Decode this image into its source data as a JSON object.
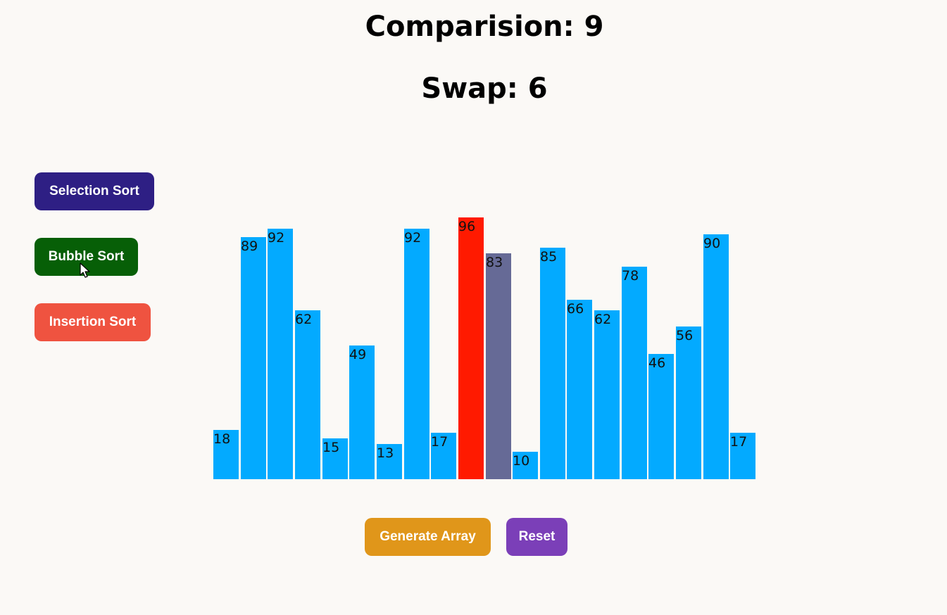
{
  "stats": {
    "comparisons": "Comparision: 9",
    "swaps": "Swap: 6"
  },
  "algorithms": {
    "selection": {
      "label": "Selection Sort",
      "color": "#2e1f84"
    },
    "bubble": {
      "label": "Bubble Sort",
      "color": "#075f07"
    },
    "insertion": {
      "label": "Insertion Sort",
      "color": "#ef5340"
    }
  },
  "actions": {
    "generate": {
      "label": "Generate Array",
      "color": "#e0961a"
    },
    "reset": {
      "label": "Reset",
      "color": "#7b3fb8"
    }
  },
  "chart_data": {
    "type": "bar",
    "values": [
      18,
      89,
      92,
      62,
      15,
      49,
      13,
      92,
      17,
      96,
      83,
      10,
      85,
      66,
      62,
      78,
      46,
      56,
      90,
      17
    ],
    "states": [
      "default",
      "default",
      "default",
      "default",
      "default",
      "default",
      "default",
      "default",
      "default",
      "compare-max",
      "compare",
      "default",
      "default",
      "default",
      "default",
      "default",
      "default",
      "default",
      "default",
      "default"
    ],
    "colors": {
      "default": "#03aaff",
      "compare-max": "#ff1a00",
      "compare": "#666a96"
    }
  }
}
